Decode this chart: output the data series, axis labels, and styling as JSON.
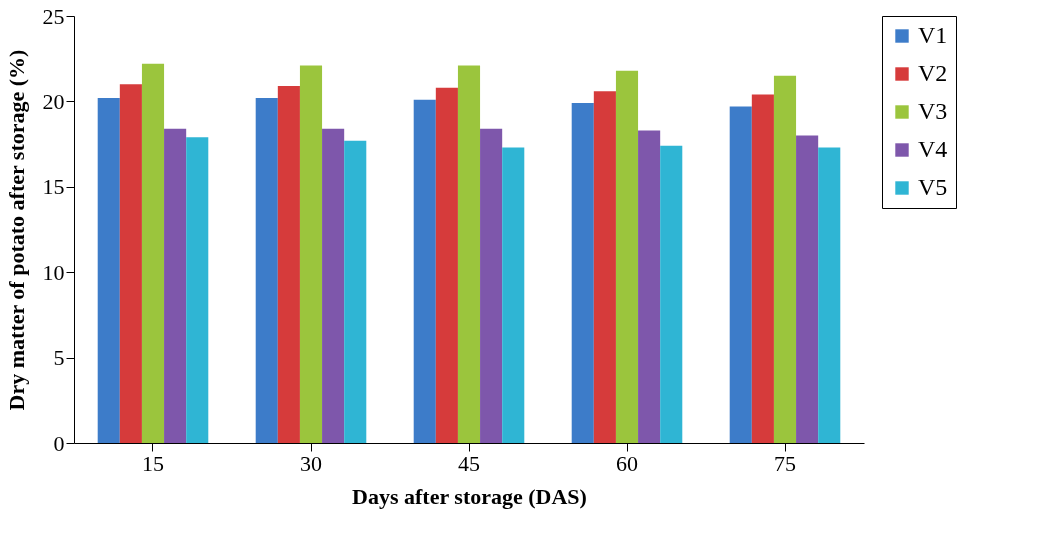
{
  "chart_data": {
    "type": "bar",
    "xlabel": "Days after storage (DAS)",
    "ylabel": "Dry matter of potato after storage (%)",
    "categories": [
      "15",
      "30",
      "45",
      "60",
      "75"
    ],
    "series": [
      {
        "name": "V1",
        "color": "#3d7cc9",
        "values": [
          20.2,
          20.2,
          20.1,
          19.9,
          19.7
        ]
      },
      {
        "name": "V2",
        "color": "#d63b3b",
        "values": [
          21.0,
          20.9,
          20.8,
          20.6,
          20.4
        ]
      },
      {
        "name": "V3",
        "color": "#9bc53d",
        "values": [
          22.2,
          22.1,
          22.1,
          21.8,
          21.5
        ]
      },
      {
        "name": "V4",
        "color": "#7e57ab",
        "values": [
          18.4,
          18.4,
          18.4,
          18.3,
          18.0
        ]
      },
      {
        "name": "V5",
        "color": "#2fb5d4",
        "values": [
          17.9,
          17.7,
          17.3,
          17.4,
          17.3
        ]
      }
    ],
    "ylim": [
      0,
      25
    ],
    "yticks": [
      0,
      5,
      10,
      15,
      20,
      25
    ],
    "grid": false,
    "legend": "right"
  }
}
